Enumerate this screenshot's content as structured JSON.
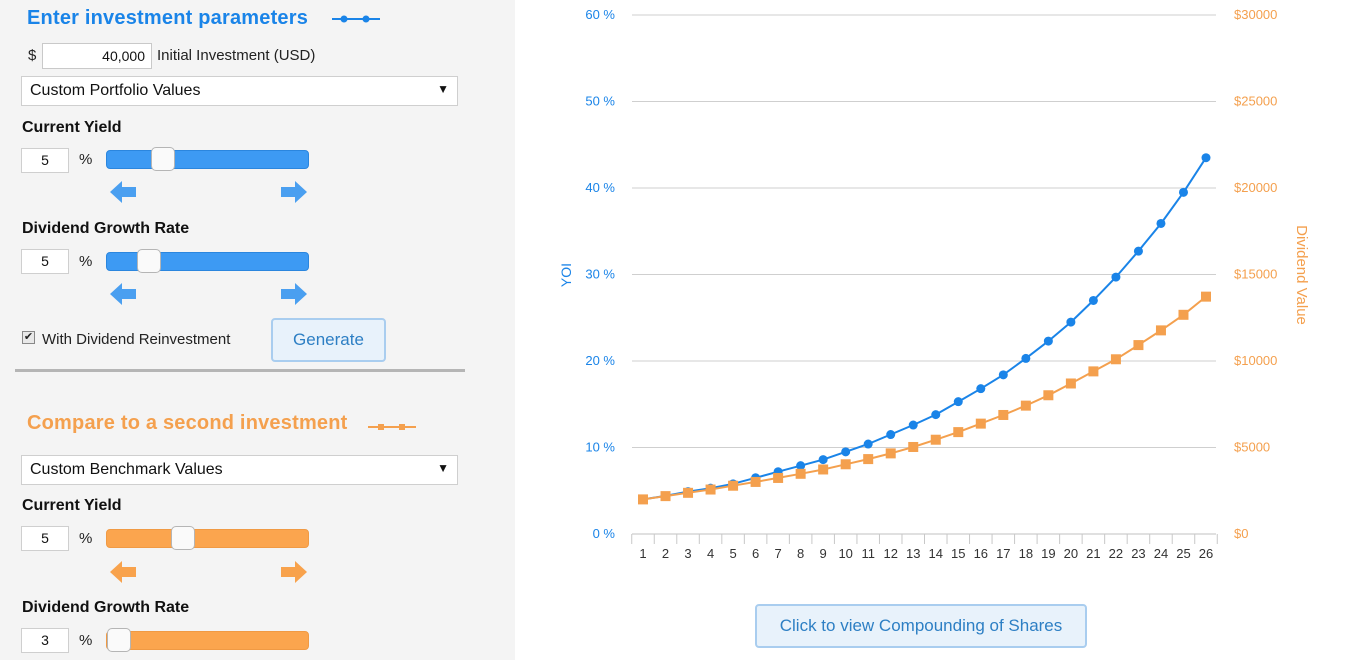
{
  "colors": {
    "primary": "#1a84e8",
    "secondary": "#f4a04e",
    "panel": "#f4f4f4"
  },
  "primary": {
    "title": "Enter investment parameters",
    "currency_symbol": "$",
    "initial_investment": "40,000",
    "initial_investment_label": "Initial Investment (USD)",
    "portfolio_select": "Custom Portfolio Values",
    "yield_label": "Current Yield",
    "yield_value": "5",
    "yield_unit": "%",
    "yield_slider_level": 0.25,
    "growth_label": "Dividend Growth Rate",
    "growth_value": "5",
    "growth_unit": "%",
    "growth_slider_level": 0.17,
    "reinvest_label": "With Dividend Reinvestment",
    "reinvest_checked": true,
    "generate_label": "Generate",
    "arrow_left_icon": "arrow-left-icon",
    "arrow_right_icon": "arrow-right-icon"
  },
  "secondary": {
    "title": "Compare to a second investment",
    "benchmark_select": "Custom Benchmark Values",
    "yield_label": "Current Yield",
    "yield_value": "5",
    "yield_unit": "%",
    "yield_slider_level": 0.36,
    "growth_label": "Dividend Growth Rate",
    "growth_value": "3",
    "growth_unit": "%",
    "growth_slider_level": 0.0
  },
  "chart_data": {
    "type": "line",
    "x": [
      1,
      2,
      3,
      4,
      5,
      6,
      7,
      8,
      9,
      10,
      11,
      12,
      13,
      14,
      15,
      16,
      17,
      18,
      19,
      20,
      21,
      22,
      23,
      24,
      25,
      26
    ],
    "y_left": {
      "label": "YOI",
      "ticks": [
        "0 %",
        "10 %",
        "20 %",
        "30 %",
        "40 %",
        "50 %",
        "60 %"
      ],
      "ylim": [
        0,
        60
      ]
    },
    "y_right": {
      "label": "Dividend Value",
      "ticks": [
        "$0",
        "$5000",
        "$10000",
        "$15000",
        "$20000",
        "$25000",
        "$30000"
      ],
      "ylim": [
        0,
        30000
      ]
    },
    "series": [
      {
        "axis": "left",
        "color": "#1a84e8",
        "marker": "circle",
        "values": [
          4.0,
          4.4,
          4.9,
          5.3,
          5.8,
          6.5,
          7.2,
          7.9,
          8.6,
          9.5,
          10.4,
          11.5,
          12.6,
          13.8,
          15.3,
          16.8,
          18.4,
          20.3,
          22.3,
          24.5,
          27.0,
          29.7,
          32.7,
          35.9,
          39.5,
          43.5
        ]
      },
      {
        "axis": "right",
        "color": "#f4a04e",
        "marker": "square",
        "values": [
          2000,
          2190,
          2380,
          2570,
          2790,
          3010,
          3240,
          3480,
          3730,
          4030,
          4330,
          4660,
          5030,
          5450,
          5890,
          6380,
          6880,
          7420,
          8020,
          8700,
          9400,
          10100,
          10920,
          11770,
          12670,
          13720
        ]
      }
    ],
    "grid": true
  },
  "footer_button": "Click to view Compounding of Shares"
}
